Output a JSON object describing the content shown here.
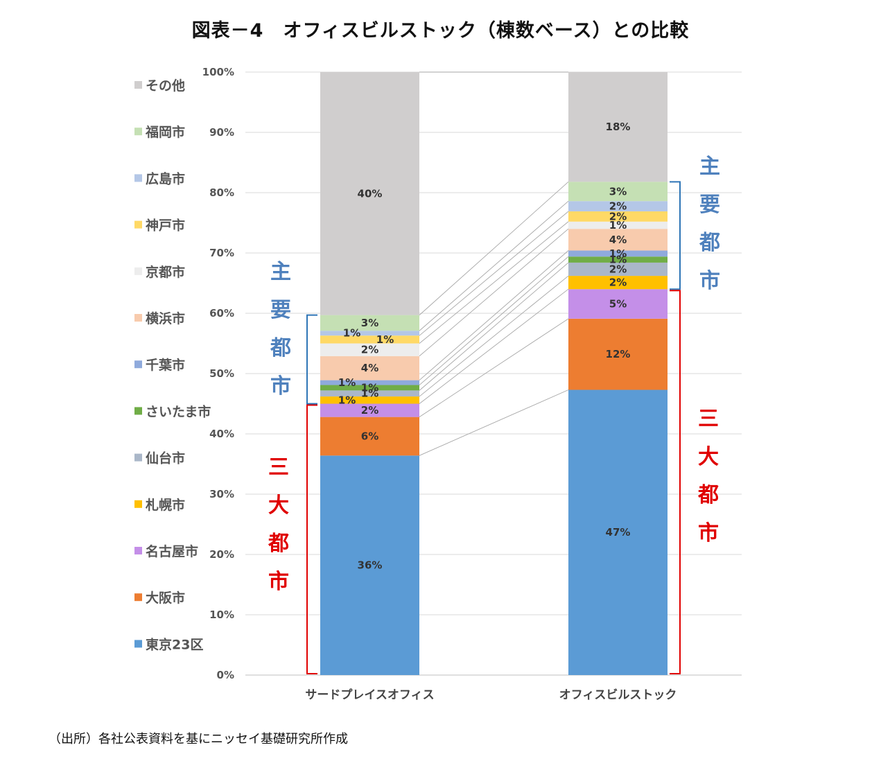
{
  "title": "図表－4　オフィスビルストック（棟数ベース）との比較",
  "source": "（出所）各社公表資料を基にニッセイ基礎研究所作成",
  "colors": {
    "東京23区": "#5b9bd5",
    "大阪市": "#ed7d31",
    "名古屋市": "#c48fe8",
    "札幌市": "#ffc000",
    "仙台市": "#aab7c9",
    "さいたま市": "#70ad47",
    "千葉市": "#8faadc",
    "横浜市": "#f8cbad",
    "京都市": "#ededed",
    "神戸市": "#ffd966",
    "広島市": "#b4c7e7",
    "福岡市": "#c5e0b4",
    "その他": "#d0cece",
    "major_bracket": "#2e75b6",
    "three_bracket": "#e00000",
    "major_text": "#4f81bd",
    "three_text": "#e00000"
  },
  "chart_data": {
    "type": "bar",
    "stacked": true,
    "normalized": true,
    "categories": [
      "サードプレイスオフィス",
      "オフィスビルストック"
    ],
    "y_ticks": [
      "0%",
      "10%",
      "20%",
      "30%",
      "40%",
      "50%",
      "60%",
      "70%",
      "80%",
      "90%",
      "100%"
    ],
    "ylim": [
      0,
      100
    ],
    "grid": true,
    "legend_position": "left",
    "series": [
      {
        "name": "東京23区",
        "values": [
          36.4,
          47.3
        ],
        "labels": [
          "36%",
          "47%"
        ]
      },
      {
        "name": "大阪市",
        "values": [
          6.4,
          11.8
        ],
        "labels": [
          "6%",
          "12%"
        ]
      },
      {
        "name": "名古屋市",
        "values": [
          2.2,
          4.9
        ],
        "labels": [
          "2%",
          "5%"
        ]
      },
      {
        "name": "札幌市",
        "values": [
          1.2,
          2.2
        ],
        "labels": [
          "1%",
          "2%"
        ]
      },
      {
        "name": "仙台市",
        "values": [
          1.0,
          2.2
        ],
        "labels": [
          "1%",
          "2%"
        ]
      },
      {
        "name": "さいたま市",
        "values": [
          0.9,
          1.0
        ],
        "labels": [
          "1%",
          "1%"
        ]
      },
      {
        "name": "千葉市",
        "values": [
          0.8,
          1.0
        ],
        "labels": [
          "1%",
          "1%"
        ]
      },
      {
        "name": "横浜市",
        "values": [
          4.0,
          3.6
        ],
        "labels": [
          "4%",
          "4%"
        ]
      },
      {
        "name": "京都市",
        "values": [
          2.1,
          1.2
        ],
        "labels": [
          "2%",
          "1%"
        ]
      },
      {
        "name": "神戸市",
        "values": [
          1.3,
          1.7
        ],
        "labels": [
          "1%",
          "2%"
        ]
      },
      {
        "name": "広島市",
        "values": [
          0.8,
          1.7
        ],
        "labels": [
          "1%",
          "2%"
        ]
      },
      {
        "name": "福岡市",
        "values": [
          2.6,
          3.2
        ],
        "labels": [
          "3%",
          "3%"
        ]
      },
      {
        "name": "その他",
        "values": [
          40.3,
          18.2
        ],
        "labels": [
          "40%",
          "18%"
        ]
      }
    ],
    "annotations": {
      "major_cities": [
        "主",
        "要",
        "都",
        "市"
      ],
      "three_cities": [
        "三",
        "大",
        "都",
        "市"
      ]
    }
  }
}
